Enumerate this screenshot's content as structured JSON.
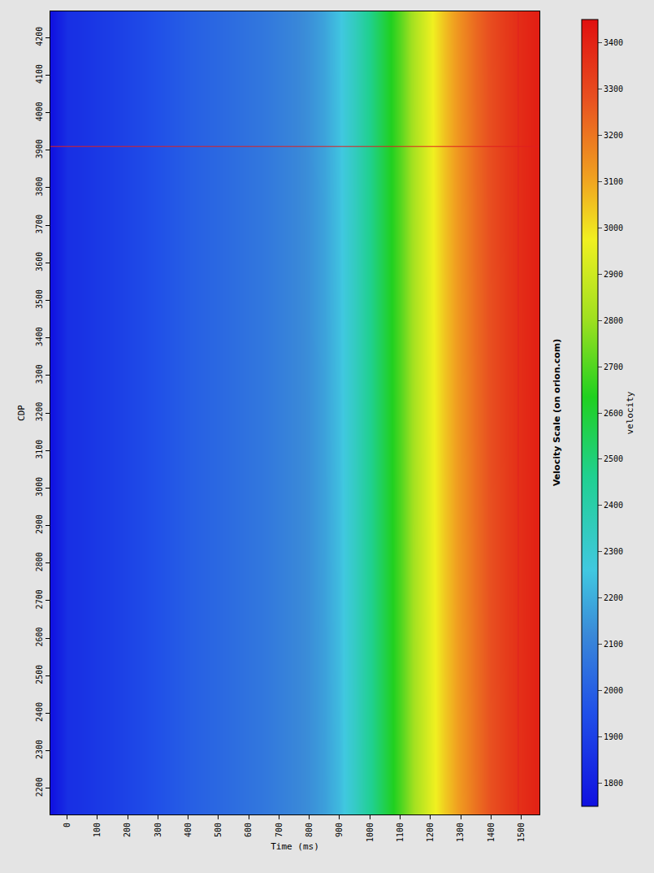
{
  "chart_data": {
    "type": "heatmap",
    "xlabel": "Time (ms)",
    "ylabel": "CDP",
    "colorbar_title": "velocity",
    "colorbar_caption": "Velocity Scale (on orion.com)",
    "x": [
      -50,
      0,
      50,
      100,
      150,
      200,
      250,
      300,
      350,
      400,
      450,
      500,
      550,
      600,
      650,
      700,
      750,
      800,
      850,
      900,
      950,
      1000,
      1050,
      1100,
      1150,
      1200,
      1250,
      1300,
      1350,
      1400,
      1450,
      1500,
      1550
    ],
    "y": [
      2150,
      3200,
      4250
    ],
    "cells": [
      [
        1760,
        1850,
        1860,
        1880,
        1895,
        1915,
        1935,
        1955,
        1975,
        1995,
        2010,
        2025,
        2040,
        2055,
        2070,
        2090,
        2110,
        2135,
        2170,
        2230,
        2330,
        2450,
        2570,
        2690,
        2820,
        2940,
        3040,
        3130,
        3210,
        3280,
        3330,
        3370,
        3400
      ],
      [
        1760,
        1850,
        1860,
        1880,
        1895,
        1915,
        1935,
        1955,
        1975,
        1995,
        2010,
        2025,
        2040,
        2055,
        2070,
        2090,
        2110,
        2135,
        2175,
        2240,
        2340,
        2460,
        2580,
        2700,
        2830,
        2950,
        3050,
        3140,
        3220,
        3285,
        3335,
        3375,
        3405
      ],
      [
        1760,
        1850,
        1860,
        1880,
        1895,
        1915,
        1935,
        1955,
        1975,
        1995,
        2010,
        2025,
        2040,
        2055,
        2070,
        2090,
        2110,
        2140,
        2180,
        2250,
        2350,
        2470,
        2590,
        2710,
        2840,
        2960,
        3060,
        3150,
        3230,
        3290,
        3340,
        3380,
        3410
      ]
    ],
    "xlim": [
      -55,
      1560
    ],
    "xticks": [
      0,
      100,
      200,
      300,
      400,
      500,
      600,
      700,
      800,
      900,
      1000,
      1100,
      1200,
      1300,
      1400,
      1500
    ],
    "ylim": [
      2130,
      4270
    ],
    "yticks": [
      2200,
      2300,
      2400,
      2500,
      2600,
      2700,
      2800,
      2900,
      3000,
      3100,
      3200,
      3300,
      3400,
      3500,
      3600,
      3700,
      3800,
      3900,
      4000,
      4100,
      4200
    ],
    "colorbar_range": [
      1750,
      3450
    ],
    "colorbar_ticks": [
      1800,
      1900,
      2000,
      2100,
      2200,
      2300,
      2400,
      2500,
      2600,
      2700,
      2800,
      2900,
      3000,
      3100,
      3200,
      3300,
      3400
    ],
    "grid": true,
    "crosshair": {
      "x": 1490,
      "y": 3910
    }
  }
}
